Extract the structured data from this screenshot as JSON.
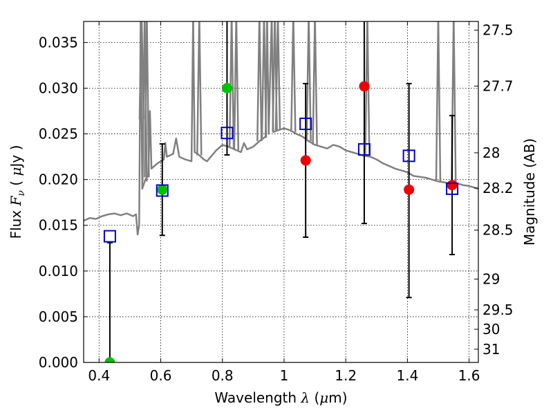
{
  "chart_data": {
    "type": "scatter",
    "title": "",
    "xlabel": "Wavelength  λ (μm)",
    "ylabel": "Flux  F_ν  ( μJy )",
    "ylabel_parts": {
      "prefix": "Flux  ",
      "var": "F",
      "sub": "ν",
      "mid": "  ( ",
      "mu": "μ",
      "suffix": "Jy )"
    },
    "xlabel_parts": {
      "prefix": "Wavelength  ",
      "var": "λ",
      "mid": " (",
      "mu": "μ",
      "suffix": "m)"
    },
    "y2label": "Magnitude (AB)",
    "xlim": [
      0.35,
      1.63
    ],
    "ylim": [
      0.0,
      0.0373
    ],
    "grid": true,
    "x_ticks": [
      {
        "value": 0.4,
        "label": "0.4"
      },
      {
        "value": 0.6,
        "label": "0.6"
      },
      {
        "value": 0.8,
        "label": "0.8"
      },
      {
        "value": 1.0,
        "label": "1"
      },
      {
        "value": 1.2,
        "label": "1.2"
      },
      {
        "value": 1.4,
        "label": "1.4"
      },
      {
        "value": 1.6,
        "label": "1.6"
      }
    ],
    "y_ticks": [
      {
        "value": 0.0,
        "label": "0.000"
      },
      {
        "value": 0.005,
        "label": "0.005"
      },
      {
        "value": 0.01,
        "label": "0.010"
      },
      {
        "value": 0.015,
        "label": "0.015"
      },
      {
        "value": 0.02,
        "label": "0.020"
      },
      {
        "value": 0.025,
        "label": "0.025"
      },
      {
        "value": 0.03,
        "label": "0.030"
      },
      {
        "value": 0.035,
        "label": "0.035"
      }
    ],
    "y2_ticks": [
      {
        "label": "27.5",
        "flux": 0.03634
      },
      {
        "label": "27.7",
        "flux": 0.03023
      },
      {
        "label": "28",
        "flux": 0.02293
      },
      {
        "label": "28.2",
        "flux": 0.01907
      },
      {
        "label": "28.5",
        "flux": 0.01447
      },
      {
        "label": "29",
        "flux": 0.00912
      },
      {
        "label": "29.5",
        "flux": 0.00575
      },
      {
        "label": "30",
        "flux": 0.00363
      },
      {
        "label": "31",
        "flux": 0.00145
      }
    ],
    "colors": {
      "spectrum": "#808080",
      "model": "#0000cc",
      "green": "#00c000",
      "red": "#ee0000",
      "errorbar": "#000000"
    },
    "series": [
      {
        "name": "",
        "kind": "line",
        "color": "#808080",
        "points": [
          [
            0.35,
            0.0155
          ],
          [
            0.37,
            0.0158
          ],
          [
            0.39,
            0.0157
          ],
          [
            0.41,
            0.016
          ],
          [
            0.43,
            0.0162
          ],
          [
            0.45,
            0.0163
          ],
          [
            0.47,
            0.0161
          ],
          [
            0.49,
            0.0163
          ],
          [
            0.51,
            0.016
          ],
          [
            0.52,
            0.0162
          ],
          [
            0.525,
            0.014
          ],
          [
            0.53,
            0.015
          ],
          [
            0.535,
            0.038
          ],
          [
            0.54,
            0.019
          ],
          [
            0.55,
            0.02
          ],
          [
            0.56,
            0.0205
          ],
          [
            0.565,
            0.0275
          ],
          [
            0.57,
            0.0212
          ],
          [
            0.58,
            0.0215
          ],
          [
            0.59,
            0.0218
          ],
          [
            0.6,
            0.022
          ],
          [
            0.61,
            0.0222
          ],
          [
            0.615,
            0.024
          ],
          [
            0.62,
            0.0225
          ],
          [
            0.64,
            0.0228
          ],
          [
            0.65,
            0.0245
          ],
          [
            0.66,
            0.0225
          ],
          [
            0.68,
            0.0222
          ],
          [
            0.7,
            0.022
          ],
          [
            0.705,
            0.038
          ],
          [
            0.71,
            0.023
          ],
          [
            0.72,
            0.0228
          ],
          [
            0.74,
            0.0222
          ],
          [
            0.75,
            0.022
          ],
          [
            0.76,
            0.0224
          ],
          [
            0.78,
            0.0232
          ],
          [
            0.8,
            0.0238
          ],
          [
            0.82,
            0.0236
          ],
          [
            0.84,
            0.0233
          ],
          [
            0.86,
            0.023
          ],
          [
            0.87,
            0.024
          ],
          [
            0.88,
            0.0233
          ],
          [
            0.9,
            0.0236
          ],
          [
            0.92,
            0.0242
          ],
          [
            0.94,
            0.0247
          ],
          [
            0.945,
            0.038
          ],
          [
            0.95,
            0.025
          ],
          [
            0.96,
            0.038
          ],
          [
            0.965,
            0.0252
          ],
          [
            0.98,
            0.0254
          ],
          [
            1.0,
            0.0256
          ],
          [
            1.02,
            0.0254
          ],
          [
            1.04,
            0.025
          ],
          [
            1.06,
            0.0247
          ],
          [
            1.08,
            0.0242
          ],
          [
            1.1,
            0.0238
          ],
          [
            1.12,
            0.0236
          ],
          [
            1.14,
            0.0234
          ],
          [
            1.16,
            0.0238
          ],
          [
            1.18,
            0.0236
          ],
          [
            1.2,
            0.0232
          ],
          [
            1.22,
            0.023
          ],
          [
            1.24,
            0.0228
          ],
          [
            1.26,
            0.0226
          ],
          [
            1.28,
            0.0225
          ],
          [
            1.3,
            0.0222
          ],
          [
            1.32,
            0.0218
          ],
          [
            1.34,
            0.0215
          ],
          [
            1.36,
            0.0212
          ],
          [
            1.38,
            0.021
          ],
          [
            1.4,
            0.0208
          ],
          [
            1.42,
            0.0204
          ],
          [
            1.44,
            0.0203
          ],
          [
            1.46,
            0.0202
          ],
          [
            1.48,
            0.02
          ],
          [
            1.5,
            0.0198
          ],
          [
            1.52,
            0.0197
          ],
          [
            1.54,
            0.0195
          ],
          [
            1.56,
            0.0196
          ],
          [
            1.58,
            0.0194
          ],
          [
            1.6,
            0.0193
          ],
          [
            1.63,
            0.019
          ]
        ],
        "spikes": [
          [
            0.538,
            0.038
          ],
          [
            0.548,
            0.038
          ],
          [
            0.555,
            0.038
          ],
          [
            0.725,
            0.038
          ],
          [
            0.83,
            0.038
          ],
          [
            0.845,
            0.038
          ],
          [
            0.92,
            0.038
          ],
          [
            0.935,
            0.038
          ],
          [
            0.97,
            0.038
          ],
          [
            0.98,
            0.038
          ],
          [
            1.03,
            0.038
          ],
          [
            1.08,
            0.038
          ],
          [
            1.1,
            0.038
          ],
          [
            1.27,
            0.038
          ],
          [
            1.5,
            0.038
          ],
          [
            1.55,
            0.038
          ]
        ]
      },
      {
        "name": "",
        "kind": "markers",
        "marker": "square",
        "color": "#0000cc",
        "points": [
          [
            0.435,
            0.0138
          ],
          [
            0.605,
            0.0188
          ],
          [
            0.815,
            0.0251
          ],
          [
            1.07,
            0.0261
          ],
          [
            1.26,
            0.0233
          ],
          [
            1.405,
            0.0226
          ],
          [
            1.545,
            0.019
          ]
        ]
      },
      {
        "name": "",
        "kind": "markers",
        "marker": "circle",
        "color": "#00c000",
        "points": [
          [
            0.435,
            0.0
          ],
          [
            0.605,
            0.0189
          ],
          [
            0.815,
            0.03
          ]
        ]
      },
      {
        "name": "",
        "kind": "markers",
        "marker": "circle",
        "color": "#ee0000",
        "points": [
          [
            1.07,
            0.0221
          ],
          [
            1.26,
            0.0302
          ],
          [
            1.405,
            0.0189
          ],
          [
            1.545,
            0.0194
          ]
        ]
      },
      {
        "name": "",
        "kind": "errorbars",
        "color": "#000000",
        "points": [
          {
            "x": 0.435,
            "low": 0.0,
            "high": 0.0131
          },
          {
            "x": 0.605,
            "low": 0.0139,
            "high": 0.0239
          },
          {
            "x": 0.815,
            "low": 0.0227,
            "high": 0.038
          },
          {
            "x": 1.07,
            "low": 0.0137,
            "high": 0.0305
          },
          {
            "x": 1.26,
            "low": 0.0152,
            "high": 0.038
          },
          {
            "x": 1.405,
            "low": 0.0071,
            "high": 0.0305
          },
          {
            "x": 1.545,
            "low": 0.0118,
            "high": 0.027
          }
        ]
      }
    ]
  }
}
